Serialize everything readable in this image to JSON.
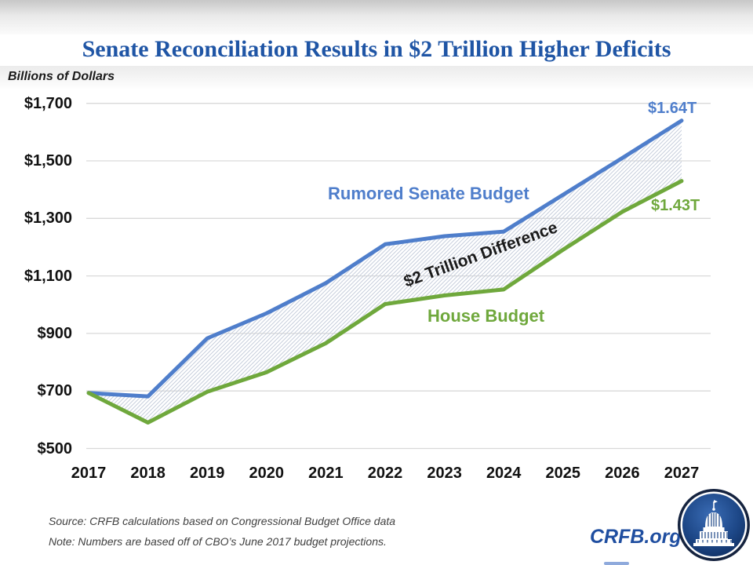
{
  "title": "Senate Reconciliation Results in $2 Trillion Higher Deficits",
  "y_axis_title": "Billions of Dollars",
  "chart_data": {
    "type": "line",
    "x": [
      2017,
      2018,
      2019,
      2020,
      2021,
      2022,
      2023,
      2024,
      2025,
      2026,
      2027
    ],
    "series": [
      {
        "name": "Rumored Senate Budget",
        "color": "#4f7ecb",
        "values": [
          693,
          681,
          883,
          970,
          1075,
          1210,
          1238,
          1254,
          1382,
          1510,
          1640
        ]
      },
      {
        "name": "House Budget",
        "color": "#6fa83c",
        "values": [
          693,
          590,
          697,
          765,
          866,
          1002,
          1032,
          1053,
          1191,
          1323,
          1430
        ]
      }
    ],
    "ylim": [
      500,
      1700
    ],
    "yticks": [
      1700,
      1500,
      1300,
      1100,
      900,
      700,
      500
    ],
    "ytick_labels": [
      "$1,700",
      "$1,500",
      "$1,300",
      "$1,100",
      "$900",
      "$700",
      "$500"
    ],
    "grid": "horizontal",
    "legend_position": "inline-labels",
    "hatched_band": "area between the two series, diagonal hatch, labeled as difference"
  },
  "annotations": {
    "senate_series_label": "Rumored Senate Budget",
    "house_series_label": "House Budget",
    "difference_label": "$2 Trillion Difference",
    "senate_end_value": "$1.64T",
    "house_end_value": "$1.43T"
  },
  "footer": {
    "source": "Source: CRFB calculations based on Congressional Budget Office data",
    "note": "Note: Numbers are based off of CBO’s June 2017 budget projections.",
    "brand": "CRFB.org"
  },
  "colors": {
    "senate_blue": "#4f7ecb",
    "house_green": "#6fa83c",
    "title_navy": "#1f55a5",
    "gridline": "#d9d9d9",
    "hatch": "#c7cedc",
    "footer_text": "#3f3f3f"
  }
}
